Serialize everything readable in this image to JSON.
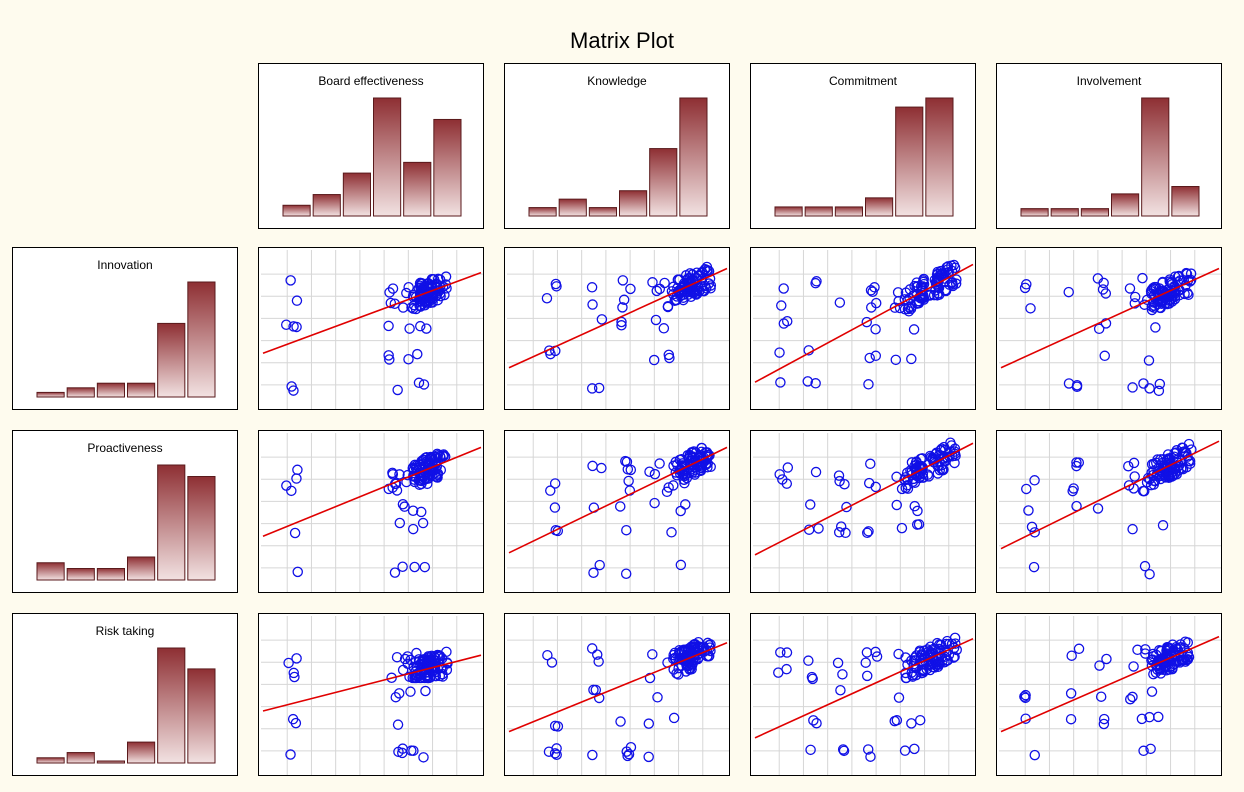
{
  "chart_data": {
    "type": "scatter",
    "title": "Matrix Plot",
    "variables_x": [
      "Board effectiveness",
      "Knowledge",
      "Commitment",
      "Involvement"
    ],
    "variables_y": [
      "Innovation",
      "Proactiveness",
      "Risk taking"
    ],
    "histograms": {
      "Board effectiveness": [
        1,
        2,
        4,
        11,
        5,
        9
      ],
      "Knowledge": [
        1,
        2,
        1,
        3,
        8,
        14
      ],
      "Commitment": [
        1,
        1,
        1,
        2,
        12,
        13
      ],
      "Involvement": [
        1,
        1,
        1,
        3,
        16,
        4
      ],
      "Innovation": [
        1,
        2,
        3,
        3,
        16,
        25
      ],
      "Proactiveness": [
        3,
        2,
        2,
        4,
        20,
        18
      ],
      "Risk taking": [
        1,
        2,
        0,
        4,
        22,
        18
      ]
    },
    "x_scores": {
      "Board effectiveness": [
        1,
        4.5,
        4.8,
        5,
        5.2,
        5.5,
        5.7,
        6
      ],
      "Knowledge": [
        1.5,
        3,
        4,
        5,
        5.5,
        6,
        6.3,
        6.6
      ],
      "Commitment": [
        1,
        2,
        3,
        4,
        5,
        5.5,
        6,
        6.6
      ],
      "Involvement": [
        1,
        2.5,
        3.5,
        4.5,
        5,
        5.5,
        5.8,
        6.2
      ]
    },
    "y_scores": {
      "Innovation": [
        1,
        2.5,
        4,
        5,
        5.5,
        6,
        6.4,
        6.8
      ],
      "Proactiveness": [
        1,
        3,
        4,
        5,
        5.5,
        6,
        6.4,
        6.8
      ],
      "Risk taking": [
        1,
        2.5,
        3.8,
        4.8,
        5.3,
        5.8,
        6.2,
        6.6
      ]
    },
    "regression_lines": [
      {
        "x": "Board effectiveness",
        "y": "Innovation",
        "y_at_xmin": 2.6,
        "y_at_xmax": 6.5
      },
      {
        "x": "Knowledge",
        "y": "Innovation",
        "y_at_xmin": 1.9,
        "y_at_xmax": 6.7
      },
      {
        "x": "Commitment",
        "y": "Innovation",
        "y_at_xmin": 1.2,
        "y_at_xmax": 6.9
      },
      {
        "x": "Involvement",
        "y": "Innovation",
        "y_at_xmin": 1.9,
        "y_at_xmax": 6.7
      },
      {
        "x": "Board effectiveness",
        "y": "Proactiveness",
        "y_at_xmin": 2.6,
        "y_at_xmax": 6.9
      },
      {
        "x": "Knowledge",
        "y": "Proactiveness",
        "y_at_xmin": 1.8,
        "y_at_xmax": 6.9
      },
      {
        "x": "Commitment",
        "y": "Proactiveness",
        "y_at_xmin": 1.7,
        "y_at_xmax": 7.1
      },
      {
        "x": "Involvement",
        "y": "Proactiveness",
        "y_at_xmin": 2.0,
        "y_at_xmax": 7.2
      },
      {
        "x": "Board effectiveness",
        "y": "Risk taking",
        "y_at_xmin": 3.0,
        "y_at_xmax": 5.7
      },
      {
        "x": "Knowledge",
        "y": "Risk taking",
        "y_at_xmin": 2.0,
        "y_at_xmax": 6.3
      },
      {
        "x": "Commitment",
        "y": "Risk taking",
        "y_at_xmin": 1.7,
        "y_at_xmax": 6.5
      },
      {
        "x": "Involvement",
        "y": "Risk taking",
        "y_at_xmin": 2.0,
        "y_at_xmax": 6.6
      }
    ],
    "axis_range": [
      0,
      7.5
    ],
    "grid": true,
    "point_color": "#1010e6",
    "line_color": "#e00000",
    "bar_color_top": "#8e2f33",
    "bar_color_bottom": "#f2e2e2"
  }
}
